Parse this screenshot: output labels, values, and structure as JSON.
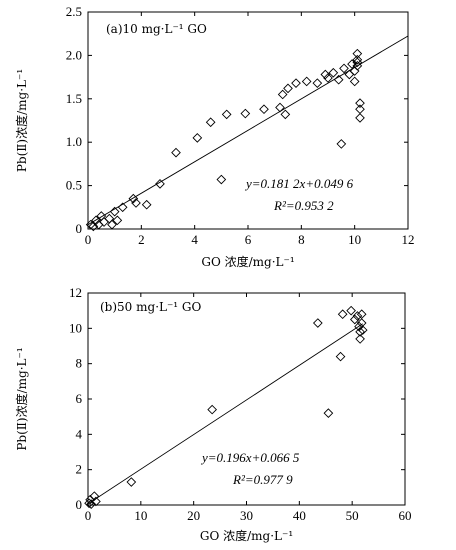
{
  "chart_data": [
    {
      "type": "scatter",
      "panel_label": "(a)10 mg·L⁻¹ GO",
      "xlabel": "GO 浓度/mg·L⁻¹",
      "ylabel": "Pb(Ⅱ)浓度/mg·L⁻¹",
      "xlim": [
        0,
        12
      ],
      "ylim": [
        0,
        2.5
      ],
      "xticks": [
        0,
        2,
        4,
        6,
        8,
        10,
        12
      ],
      "yticks": [
        0,
        0.5,
        1.0,
        1.5,
        2.0,
        2.5
      ],
      "ytick_labels": [
        "0",
        "0.5",
        "1.0",
        "1.5",
        "2.0",
        "2.5"
      ],
      "equation": "y=0.181 2x+0.049 6",
      "r2": "R²=0.953 2",
      "fit": {
        "slope": 0.1812,
        "intercept": 0.0496,
        "x_range": [
          0,
          12
        ]
      },
      "points": [
        [
          0.1,
          0.05
        ],
        [
          0.2,
          0.03
        ],
        [
          0.3,
          0.1
        ],
        [
          0.4,
          0.05
        ],
        [
          0.5,
          0.15
        ],
        [
          0.6,
          0.08
        ],
        [
          0.8,
          0.12
        ],
        [
          0.9,
          0.05
        ],
        [
          1.0,
          0.2
        ],
        [
          1.1,
          0.1
        ],
        [
          1.3,
          0.25
        ],
        [
          1.7,
          0.35
        ],
        [
          1.8,
          0.3
        ],
        [
          2.2,
          0.28
        ],
        [
          2.7,
          0.52
        ],
        [
          3.3,
          0.88
        ],
        [
          4.1,
          1.05
        ],
        [
          4.6,
          1.23
        ],
        [
          5.0,
          0.57
        ],
        [
          5.2,
          1.32
        ],
        [
          5.9,
          1.33
        ],
        [
          6.6,
          1.38
        ],
        [
          7.2,
          1.4
        ],
        [
          7.3,
          1.55
        ],
        [
          7.4,
          1.32
        ],
        [
          7.5,
          1.62
        ],
        [
          7.8,
          1.68
        ],
        [
          8.2,
          1.7
        ],
        [
          8.6,
          1.68
        ],
        [
          8.9,
          1.78
        ],
        [
          9.0,
          1.74
        ],
        [
          9.2,
          1.8
        ],
        [
          9.4,
          1.72
        ],
        [
          9.5,
          0.98
        ],
        [
          9.6,
          1.85
        ],
        [
          9.8,
          1.78
        ],
        [
          10.0,
          1.82
        ],
        [
          10.1,
          1.88
        ],
        [
          10.1,
          1.95
        ],
        [
          10.1,
          2.02
        ],
        [
          10.1,
          1.92
        ],
        [
          10.2,
          1.45
        ],
        [
          10.2,
          1.38
        ],
        [
          10.2,
          1.28
        ],
        [
          10.0,
          1.7
        ],
        [
          9.9,
          1.9
        ]
      ]
    },
    {
      "type": "scatter",
      "panel_label": "(b)50 mg·L⁻¹ GO",
      "xlabel": "GO 浓度/mg·L⁻¹",
      "ylabel": "Pb(Ⅱ)浓度/mg·L⁻¹",
      "xlim": [
        0,
        60
      ],
      "ylim": [
        0,
        12
      ],
      "xticks": [
        0,
        10,
        20,
        30,
        40,
        50,
        60
      ],
      "yticks": [
        0,
        2,
        4,
        6,
        8,
        10,
        12
      ],
      "ytick_labels": [
        "0",
        "2",
        "4",
        "6",
        "8",
        "10",
        "12"
      ],
      "equation": "y=0.196x+0.066 5",
      "r2": "R²=0.977 9",
      "fit": {
        "slope": 0.196,
        "intercept": 0.0665,
        "x_range": [
          0,
          52
        ]
      },
      "points": [
        [
          0.2,
          0.1
        ],
        [
          0.4,
          0.3
        ],
        [
          0.6,
          0.05
        ],
        [
          1.2,
          0.5
        ],
        [
          1.5,
          0.2
        ],
        [
          8.2,
          1.3
        ],
        [
          23.5,
          5.4
        ],
        [
          43.5,
          10.3
        ],
        [
          45.5,
          5.2
        ],
        [
          47.8,
          8.4
        ],
        [
          48.2,
          10.8
        ],
        [
          49.8,
          11.0
        ],
        [
          50.5,
          10.5
        ],
        [
          51.0,
          10.7
        ],
        [
          51.3,
          10.1
        ],
        [
          51.5,
          9.8
        ],
        [
          51.5,
          9.4
        ],
        [
          51.8,
          10.3
        ],
        [
          51.8,
          10.8
        ],
        [
          52.0,
          9.9
        ]
      ]
    }
  ]
}
